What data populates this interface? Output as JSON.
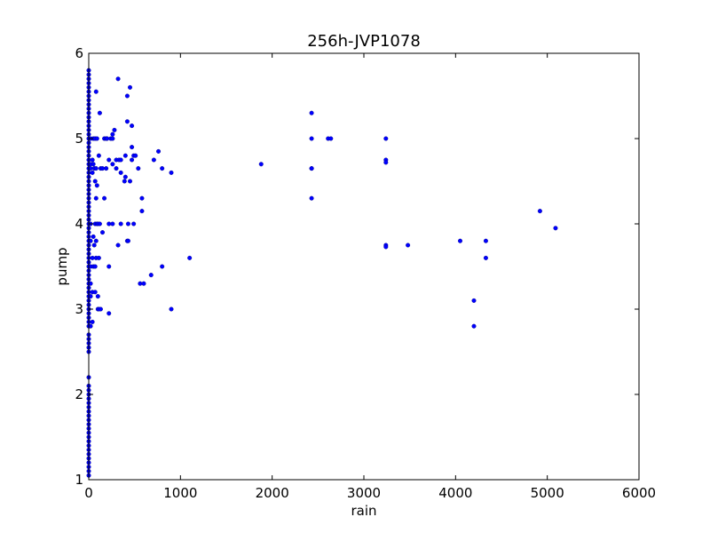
{
  "chart_data": {
    "type": "scatter",
    "title": "256h-JVP1078",
    "xlabel": "rain",
    "ylabel": "pump",
    "xlim": [
      0,
      6000
    ],
    "ylim": [
      1,
      6
    ],
    "xticks": [
      0,
      1000,
      2000,
      3000,
      4000,
      5000,
      6000
    ],
    "yticks": [
      1,
      2,
      3,
      4,
      5,
      6
    ],
    "grid": false,
    "legend": "none",
    "series": [
      {
        "color": "#0000ff",
        "points": [
          [
            0,
            5.8
          ],
          [
            0,
            5.75
          ],
          [
            0,
            5.7
          ],
          [
            0,
            5.65
          ],
          [
            0,
            5.6
          ],
          [
            0,
            5.55
          ],
          [
            0,
            5.5
          ],
          [
            0,
            5.45
          ],
          [
            0,
            5.4
          ],
          [
            0,
            5.35
          ],
          [
            0,
            5.3
          ],
          [
            0,
            5.25
          ],
          [
            0,
            5.2
          ],
          [
            0,
            5.15
          ],
          [
            0,
            5.1
          ],
          [
            0,
            5.05
          ],
          [
            0,
            5.0
          ],
          [
            0,
            4.95
          ],
          [
            0,
            4.9
          ],
          [
            0,
            4.85
          ],
          [
            0,
            4.8
          ],
          [
            0,
            4.75
          ],
          [
            0,
            4.7
          ],
          [
            0,
            4.65
          ],
          [
            0,
            4.6
          ],
          [
            0,
            4.55
          ],
          [
            0,
            4.5
          ],
          [
            0,
            4.45
          ],
          [
            0,
            4.4
          ],
          [
            0,
            4.35
          ],
          [
            0,
            4.3
          ],
          [
            0,
            4.25
          ],
          [
            0,
            4.2
          ],
          [
            0,
            4.15
          ],
          [
            0,
            4.1
          ],
          [
            0,
            4.05
          ],
          [
            0,
            4.0
          ],
          [
            0,
            3.95
          ],
          [
            0,
            3.9
          ],
          [
            0,
            3.85
          ],
          [
            0,
            3.8
          ],
          [
            0,
            3.75
          ],
          [
            0,
            3.7
          ],
          [
            0,
            3.65
          ],
          [
            0,
            3.6
          ],
          [
            0,
            3.55
          ],
          [
            0,
            3.5
          ],
          [
            0,
            3.45
          ],
          [
            0,
            3.4
          ],
          [
            0,
            3.35
          ],
          [
            0,
            3.3
          ],
          [
            0,
            3.25
          ],
          [
            0,
            3.2
          ],
          [
            0,
            3.15
          ],
          [
            0,
            3.1
          ],
          [
            0,
            3.05
          ],
          [
            0,
            3.0
          ],
          [
            0,
            2.95
          ],
          [
            0,
            2.9
          ],
          [
            0,
            2.85
          ],
          [
            0,
            2.8
          ],
          [
            0,
            2.7
          ],
          [
            0,
            2.65
          ],
          [
            0,
            2.6
          ],
          [
            0,
            2.55
          ],
          [
            0,
            2.5
          ],
          [
            0,
            2.2
          ],
          [
            0,
            2.1
          ],
          [
            0,
            2.05
          ],
          [
            0,
            2.0
          ],
          [
            0,
            1.95
          ],
          [
            0,
            1.9
          ],
          [
            0,
            1.85
          ],
          [
            0,
            1.8
          ],
          [
            0,
            1.75
          ],
          [
            0,
            1.7
          ],
          [
            0,
            1.65
          ],
          [
            0,
            1.6
          ],
          [
            0,
            1.55
          ],
          [
            0,
            1.5
          ],
          [
            0,
            1.45
          ],
          [
            0,
            1.4
          ],
          [
            0,
            1.35
          ],
          [
            0,
            1.3
          ],
          [
            0,
            1.25
          ],
          [
            0,
            1.2
          ],
          [
            0,
            1.15
          ],
          [
            0,
            1.1
          ],
          [
            0,
            1.05
          ],
          [
            20,
            4.7
          ],
          [
            20,
            4.65
          ],
          [
            20,
            3.8
          ],
          [
            20,
            3.5
          ],
          [
            20,
            3.3
          ],
          [
            20,
            3.15
          ],
          [
            20,
            2.8
          ],
          [
            20,
            5.0
          ],
          [
            20,
            4.0
          ],
          [
            40,
            4.75
          ],
          [
            40,
            4.6
          ],
          [
            40,
            3.6
          ],
          [
            40,
            3.2
          ],
          [
            40,
            2.85
          ],
          [
            50,
            5.0
          ],
          [
            50,
            4.7
          ],
          [
            50,
            3.85
          ],
          [
            50,
            3.5
          ],
          [
            60,
            4.65
          ],
          [
            60,
            3.75
          ],
          [
            70,
            5.0
          ],
          [
            70,
            4.5
          ],
          [
            70,
            4.0
          ],
          [
            70,
            3.5
          ],
          [
            70,
            3.2
          ],
          [
            80,
            5.55
          ],
          [
            80,
            4.65
          ],
          [
            80,
            4.3
          ],
          [
            80,
            3.8
          ],
          [
            80,
            3.6
          ],
          [
            90,
            5.0
          ],
          [
            90,
            4.45
          ],
          [
            90,
            4.0
          ],
          [
            100,
            4.0
          ],
          [
            100,
            3.15
          ],
          [
            100,
            3.0
          ],
          [
            110,
            4.8
          ],
          [
            110,
            3.6
          ],
          [
            110,
            3.0
          ],
          [
            120,
            5.3
          ],
          [
            120,
            4.0
          ],
          [
            130,
            4.65
          ],
          [
            130,
            3.0
          ],
          [
            150,
            4.65
          ],
          [
            150,
            3.9
          ],
          [
            170,
            5.0
          ],
          [
            170,
            4.3
          ],
          [
            190,
            5.0
          ],
          [
            190,
            4.65
          ],
          [
            200,
            5.0
          ],
          [
            220,
            4.75
          ],
          [
            220,
            4.0
          ],
          [
            220,
            3.5
          ],
          [
            220,
            2.95
          ],
          [
            240,
            5.0
          ],
          [
            260,
            5.05
          ],
          [
            260,
            5.0
          ],
          [
            260,
            4.7
          ],
          [
            260,
            4.0
          ],
          [
            280,
            5.1
          ],
          [
            300,
            4.75
          ],
          [
            300,
            4.65
          ],
          [
            320,
            5.7
          ],
          [
            320,
            3.75
          ],
          [
            330,
            4.75
          ],
          [
            350,
            4.75
          ],
          [
            350,
            4.6
          ],
          [
            350,
            4.0
          ],
          [
            390,
            4.5
          ],
          [
            400,
            4.55
          ],
          [
            400,
            4.8
          ],
          [
            420,
            5.2
          ],
          [
            420,
            5.5
          ],
          [
            420,
            3.8
          ],
          [
            430,
            4.0
          ],
          [
            430,
            3.8
          ],
          [
            450,
            5.6
          ],
          [
            450,
            4.5
          ],
          [
            470,
            5.15
          ],
          [
            470,
            4.9
          ],
          [
            470,
            4.75
          ],
          [
            490,
            4.8
          ],
          [
            490,
            4.0
          ],
          [
            510,
            4.8
          ],
          [
            540,
            4.65
          ],
          [
            560,
            3.3
          ],
          [
            580,
            4.3
          ],
          [
            580,
            4.15
          ],
          [
            600,
            3.3
          ],
          [
            680,
            3.4
          ],
          [
            710,
            4.75
          ],
          [
            760,
            4.85
          ],
          [
            800,
            4.65
          ],
          [
            800,
            3.5
          ],
          [
            900,
            4.6
          ],
          [
            900,
            3.0
          ],
          [
            1100,
            3.6
          ],
          [
            1880,
            4.7
          ],
          [
            2430,
            5.3
          ],
          [
            2430,
            5.0
          ],
          [
            2430,
            4.65
          ],
          [
            2430,
            4.65
          ],
          [
            2430,
            4.3
          ],
          [
            2610,
            5.0
          ],
          [
            2640,
            5.0
          ],
          [
            3240,
            5.0
          ],
          [
            3240,
            4.75
          ],
          [
            3240,
            4.72
          ],
          [
            3240,
            3.75
          ],
          [
            3240,
            3.73
          ],
          [
            3480,
            3.75
          ],
          [
            4050,
            3.8
          ],
          [
            4200,
            3.1
          ],
          [
            4200,
            2.8
          ],
          [
            4330,
            3.8
          ],
          [
            4330,
            3.6
          ],
          [
            4920,
            4.15
          ],
          [
            5090,
            3.95
          ]
        ]
      }
    ]
  }
}
